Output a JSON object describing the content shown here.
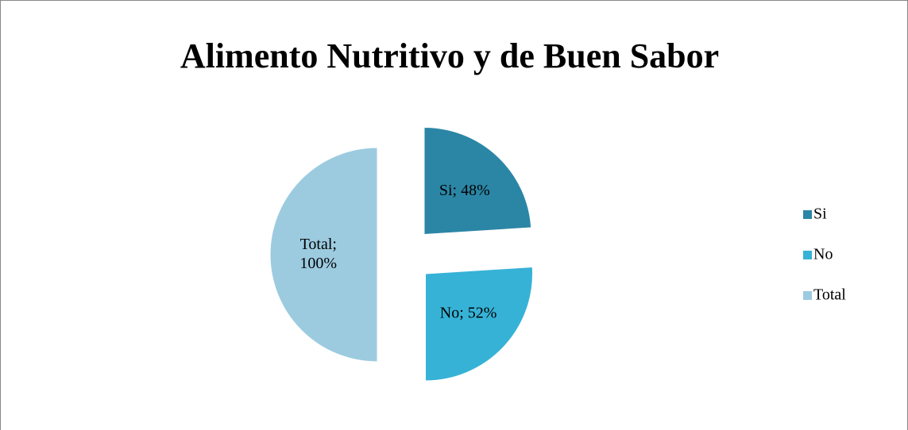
{
  "chart_data": {
    "type": "pie",
    "title": "Alimento Nutritivo y de Buen Sabor",
    "categories": [
      "Si",
      "No",
      "Total"
    ],
    "values": [
      48,
      52,
      100
    ],
    "value_labels": [
      "Si; 48%",
      "No; 52%",
      "Total; 100%"
    ],
    "colors": [
      "#2b86a6",
      "#36b2d6",
      "#9ccbe0"
    ],
    "legend": "right"
  }
}
